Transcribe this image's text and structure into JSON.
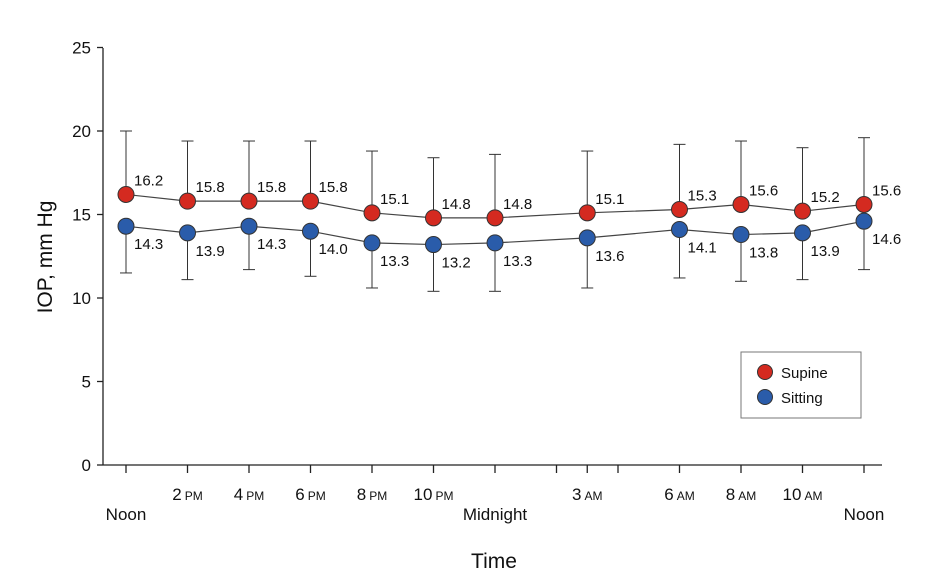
{
  "chart_data": {
    "type": "line",
    "title": "",
    "xlabel": "Time",
    "ylabel": "IOP, mm Hg",
    "ylim": [
      0,
      25
    ],
    "yticks": [
      0,
      5,
      10,
      15,
      20,
      25
    ],
    "x_hours": [
      12,
      14,
      16,
      18,
      20,
      22,
      24,
      27,
      30,
      32,
      34,
      36
    ],
    "categories": [
      {
        "main": "Noon",
        "suffix": ""
      },
      {
        "main": "2",
        "suffix": "PM"
      },
      {
        "main": "4",
        "suffix": "PM"
      },
      {
        "main": "6",
        "suffix": "PM"
      },
      {
        "main": "8",
        "suffix": "PM"
      },
      {
        "main": "10",
        "suffix": "PM"
      },
      {
        "main": "Midnight",
        "suffix": ""
      },
      {
        "main": "3",
        "suffix": "AM"
      },
      {
        "main": "6",
        "suffix": "AM"
      },
      {
        "main": "8",
        "suffix": "AM"
      },
      {
        "main": "10",
        "suffix": "AM"
      },
      {
        "main": "Noon",
        "suffix": ""
      }
    ],
    "minor_ticks_hours": [
      26,
      28
    ],
    "series": [
      {
        "name": "Supine",
        "color": "#d42a20",
        "values": [
          16.2,
          15.8,
          15.8,
          15.8,
          15.1,
          14.8,
          14.8,
          15.1,
          15.3,
          15.6,
          15.2,
          15.6
        ],
        "error_upper": [
          20.0,
          19.4,
          19.4,
          19.4,
          18.8,
          18.4,
          18.6,
          18.8,
          19.2,
          19.4,
          19.0,
          19.6
        ]
      },
      {
        "name": "Sitting",
        "color": "#2a5caa",
        "values": [
          14.3,
          13.9,
          14.3,
          14.0,
          13.3,
          13.2,
          13.3,
          13.6,
          14.1,
          13.8,
          13.9,
          14.6
        ],
        "error_lower": [
          11.5,
          11.1,
          11.7,
          11.3,
          10.6,
          10.4,
          10.4,
          10.6,
          11.2,
          11.0,
          11.1,
          11.7
        ]
      }
    ],
    "grid": false,
    "legend_position": "bottom-right"
  }
}
